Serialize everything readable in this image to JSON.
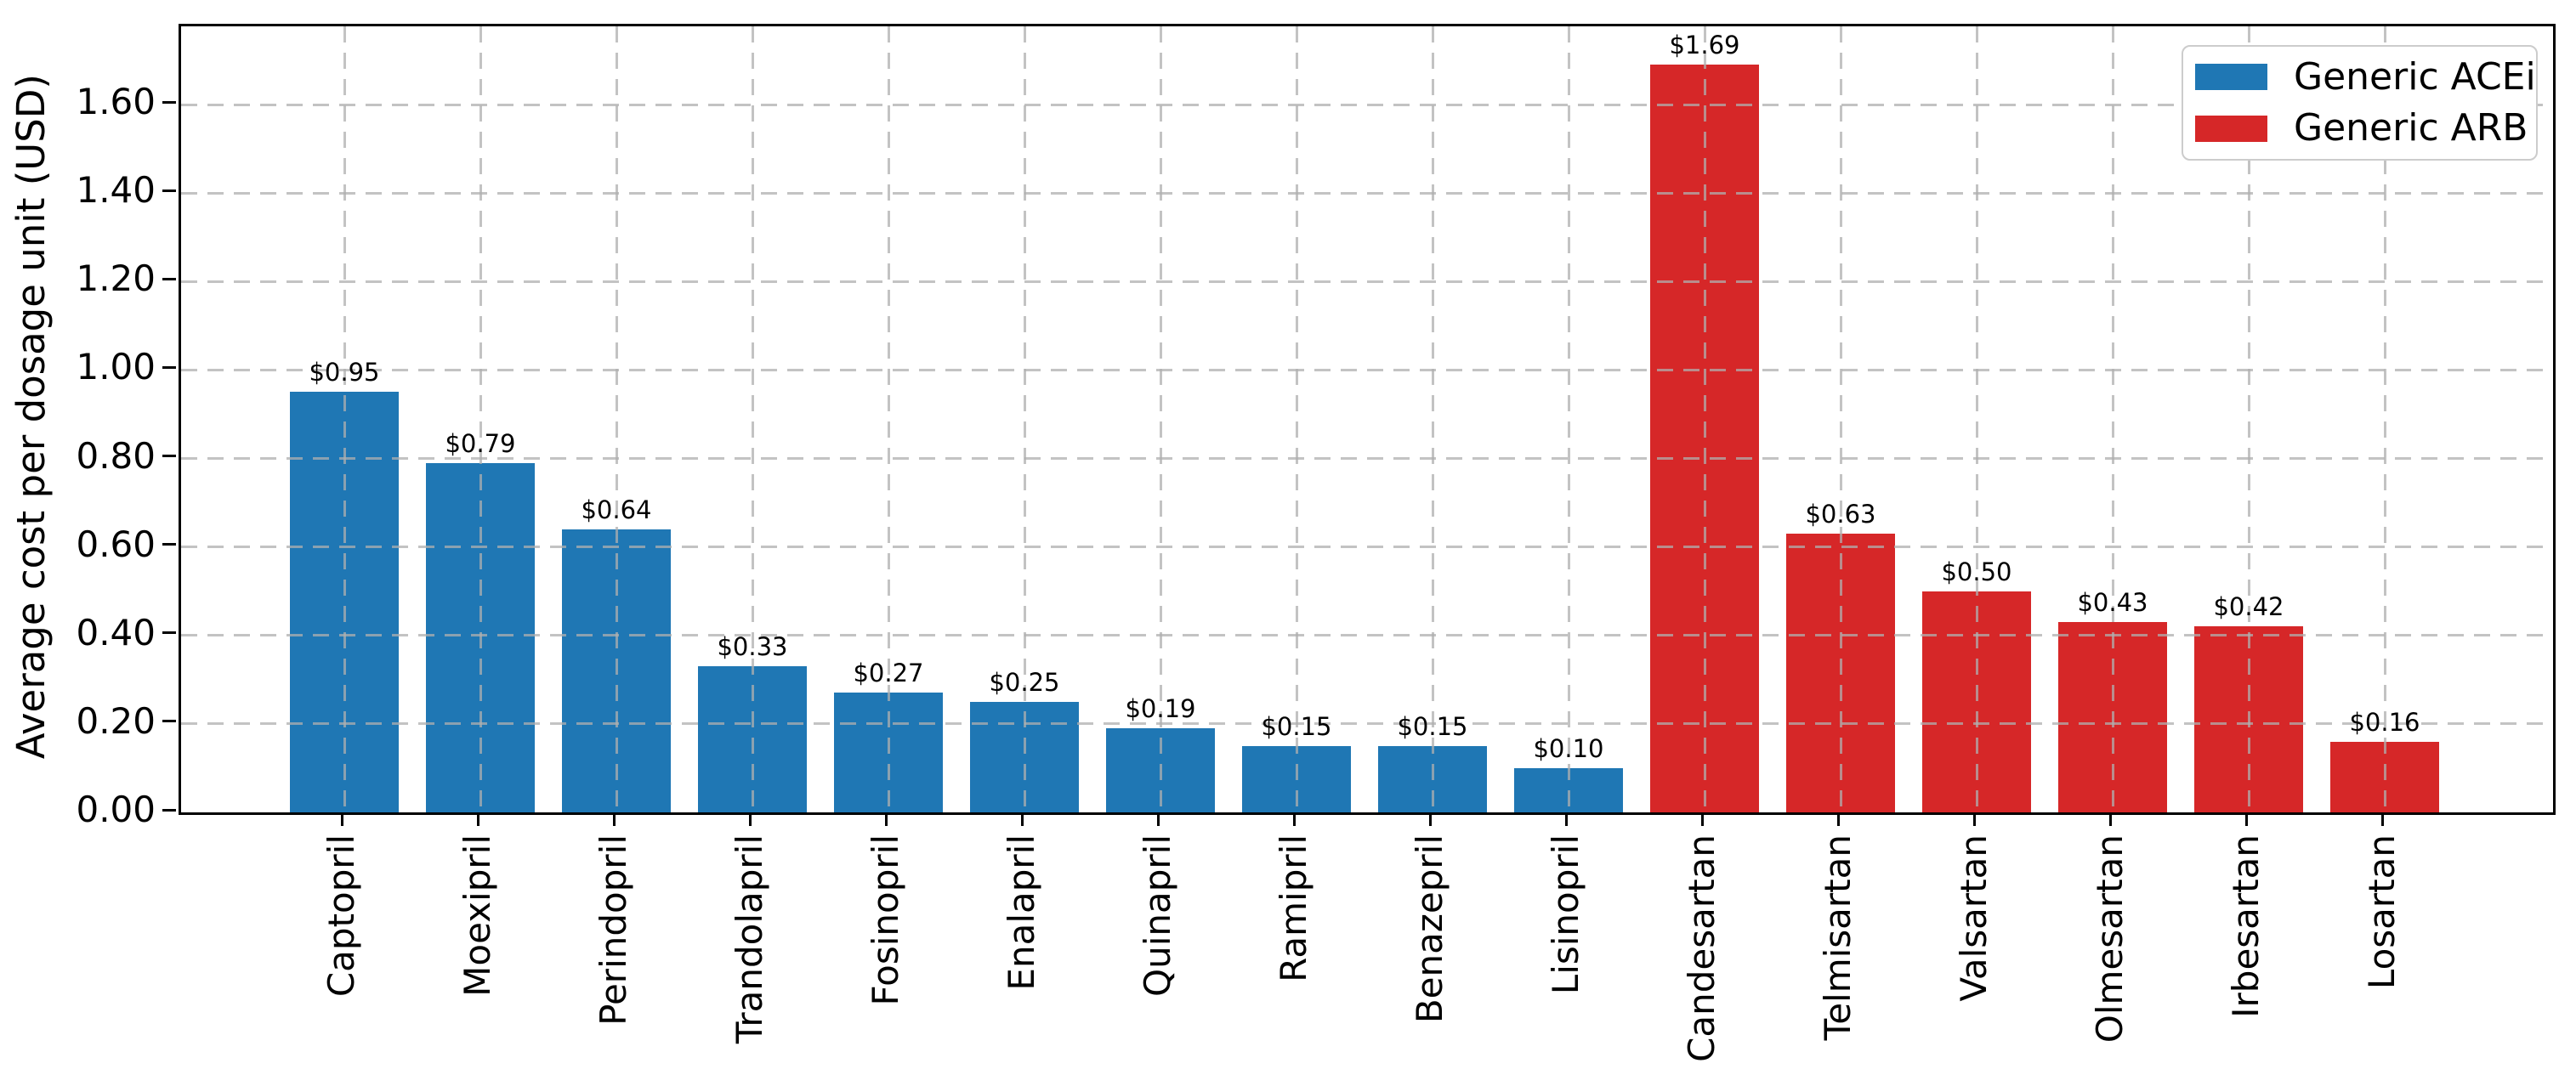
{
  "chart_data": {
    "type": "bar",
    "title": "",
    "ylabel": "Average cost per dosage unit (USD)",
    "xlabel": "",
    "ylim": [
      0,
      1.775
    ],
    "yticks": [
      "0.00",
      "0.20",
      "0.40",
      "0.60",
      "0.80",
      "1.00",
      "1.20",
      "1.40",
      "1.60"
    ],
    "grid": "dashed, both axes, drawn over bars",
    "legend": {
      "position": "upper right",
      "entries": [
        {
          "label": "Generic ACEi",
          "color": "#1f77b4"
        },
        {
          "label": "Generic ARB",
          "color": "#d62728"
        }
      ]
    },
    "categories": [
      "Captopril",
      "Moexipril",
      "Perindopril",
      "Trandolapril",
      "Fosinopril",
      "Enalapril",
      "Quinapril",
      "Ramipril",
      "Benazepril",
      "Lisinopril",
      "Candesartan",
      "Telmisartan",
      "Valsartan",
      "Olmesartan",
      "Irbesartan",
      "Losartan"
    ],
    "bars": [
      {
        "category": "Captopril",
        "group": "Generic ACEi",
        "value": 0.95,
        "label": "$0.95"
      },
      {
        "category": "Moexipril",
        "group": "Generic ACEi",
        "value": 0.79,
        "label": "$0.79"
      },
      {
        "category": "Perindopril",
        "group": "Generic ACEi",
        "value": 0.64,
        "label": "$0.64"
      },
      {
        "category": "Trandolapril",
        "group": "Generic ACEi",
        "value": 0.33,
        "label": "$0.33"
      },
      {
        "category": "Fosinopril",
        "group": "Generic ACEi",
        "value": 0.27,
        "label": "$0.27"
      },
      {
        "category": "Enalapril",
        "group": "Generic ACEi",
        "value": 0.25,
        "label": "$0.25"
      },
      {
        "category": "Quinapril",
        "group": "Generic ACEi",
        "value": 0.19,
        "label": "$0.19"
      },
      {
        "category": "Ramipril",
        "group": "Generic ACEi",
        "value": 0.15,
        "label": "$0.15"
      },
      {
        "category": "Benazepril",
        "group": "Generic ACEi",
        "value": 0.15,
        "label": "$0.15"
      },
      {
        "category": "Lisinopril",
        "group": "Generic ACEi",
        "value": 0.1,
        "label": "$0.10"
      },
      {
        "category": "Candesartan",
        "group": "Generic ARB",
        "value": 1.69,
        "label": "$1.69"
      },
      {
        "category": "Telmisartan",
        "group": "Generic ARB",
        "value": 0.63,
        "label": "$0.63"
      },
      {
        "category": "Valsartan",
        "group": "Generic ARB",
        "value": 0.5,
        "label": "$0.50"
      },
      {
        "category": "Olmesartan",
        "group": "Generic ARB",
        "value": 0.43,
        "label": "$0.43"
      },
      {
        "category": "Irbesartan",
        "group": "Generic ARB",
        "value": 0.42,
        "label": "$0.42"
      },
      {
        "category": "Losartan",
        "group": "Generic ARB",
        "value": 0.16,
        "label": "$0.16"
      }
    ]
  }
}
